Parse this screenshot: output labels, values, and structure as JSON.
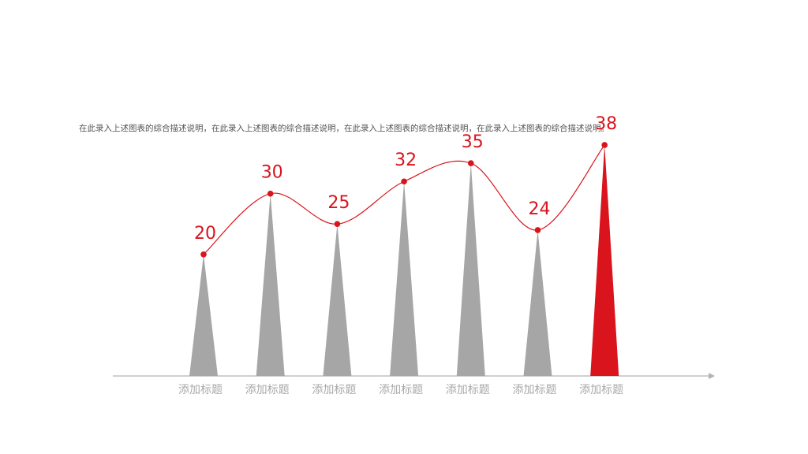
{
  "description": "在此录入上述图表的综合描述说明，在此录入上述图表的综合描述说明，在此录入上述图表的综合描述说明，在此录入上述图表的综合描述说明。",
  "colors": {
    "accent": "#d9141c",
    "bar_default": "#a6a6a6",
    "axis": "#b3b3b3",
    "tick_text": "#a8a8a8"
  },
  "chart_data": {
    "type": "bar",
    "categories": [
      "添加标题",
      "添加标题",
      "添加标题",
      "添加标题",
      "添加标题",
      "添加标题",
      "添加标题"
    ],
    "values": [
      20,
      30,
      25,
      32,
      35,
      24,
      38
    ],
    "highlight_index": 6,
    "title": "",
    "xlabel": "",
    "ylabel": "",
    "ylim": [
      0,
      45
    ],
    "grid": false,
    "legend": "none",
    "overlay_line": true
  }
}
